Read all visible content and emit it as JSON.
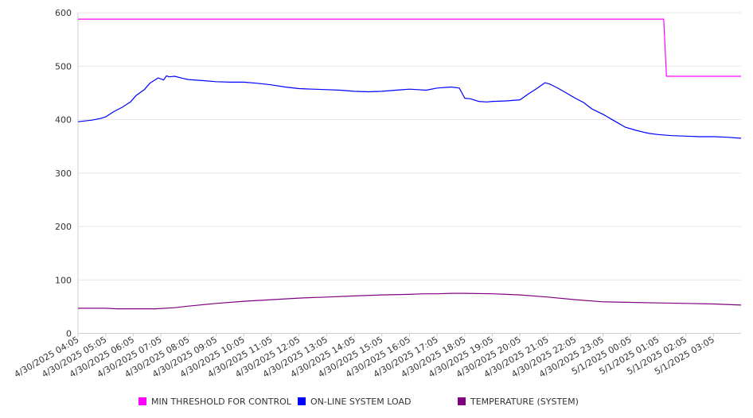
{
  "chart_data": {
    "type": "line",
    "ylim": [
      0,
      600
    ],
    "yticks": [
      0,
      100,
      200,
      300,
      400,
      500,
      600
    ],
    "xlim": [
      0,
      24
    ],
    "grid": "horizontal",
    "legend_position": "bottom",
    "categories": [
      "4/30/2025 04:05",
      "4/30/2025 05:05",
      "4/30/2025 06:05",
      "4/30/2025 07:05",
      "4/30/2025 08:05",
      "4/30/2025 09:05",
      "4/30/2025 10:05",
      "4/30/2025 11:05",
      "4/30/2025 12:05",
      "4/30/2025 13:05",
      "4/30/2025 14:05",
      "4/30/2025 15:05",
      "4/30/2025 16:05",
      "4/30/2025 17:05",
      "4/30/2025 18:05",
      "4/30/2025 19:05",
      "4/30/2025 20:05",
      "4/30/2025 21:05",
      "4/30/2025 22:05",
      "4/30/2025 23:05",
      "5/1/2025 00:05",
      "5/1/2025 01:05",
      "5/1/2025 02:05",
      "5/1/2025 03:05"
    ],
    "series": [
      {
        "name": "MIN THRESHOLD FOR CONTROL",
        "color": "#ff00ff",
        "x": [
          0,
          21.2,
          21.3,
          24
        ],
        "y": [
          588,
          588,
          481,
          481
        ]
      },
      {
        "name": "ON-LINE SYSTEM LOAD",
        "color": "#0000ff",
        "x": [
          0,
          0.5,
          0.8,
          1.0,
          1.3,
          1.6,
          1.9,
          2.1,
          2.4,
          2.6,
          2.9,
          3.1,
          3.2,
          3.3,
          3.5,
          3.8,
          4.0,
          4.5,
          5.0,
          5.5,
          6.0,
          6.5,
          7.0,
          7.5,
          8.0,
          8.5,
          9.0,
          9.5,
          10.0,
          10.5,
          11.0,
          11.5,
          12.0,
          12.3,
          12.6,
          13.0,
          13.5,
          13.8,
          14.0,
          14.2,
          14.5,
          14.8,
          15.0,
          15.5,
          16.0,
          16.3,
          16.6,
          16.9,
          17.1,
          17.4,
          17.7,
          18.0,
          18.3,
          18.6,
          19.0,
          19.4,
          19.8,
          20.2,
          20.5,
          20.7,
          21.0,
          21.5,
          22.0,
          22.5,
          23.0,
          23.5,
          24.0
        ],
        "y": [
          396,
          399,
          402,
          405,
          415,
          423,
          433,
          445,
          456,
          468,
          478,
          474,
          482,
          480,
          481,
          477,
          475,
          473,
          471,
          470,
          470,
          468,
          465,
          461,
          458,
          457,
          456,
          455,
          453,
          452,
          453,
          455,
          457,
          456,
          455,
          459,
          461,
          459,
          440,
          439,
          434,
          433,
          434,
          435,
          437,
          448,
          458,
          469,
          466,
          458,
          449,
          440,
          432,
          420,
          410,
          398,
          386,
          380,
          376,
          374,
          372,
          370,
          369,
          368,
          368,
          367,
          365
        ]
      },
      {
        "name": "TEMPERATURE (SYSTEM)",
        "color": "#800080",
        "x": [
          0,
          1,
          1.4,
          2,
          2.8,
          3.5,
          4,
          5,
          6,
          7,
          8,
          9,
          10,
          11,
          12,
          12.5,
          13,
          13.5,
          14,
          15,
          16,
          17,
          18,
          19,
          20,
          21,
          22,
          23,
          24
        ],
        "y": [
          47,
          47,
          46,
          46,
          46,
          48,
          51,
          56,
          60,
          63,
          66,
          68,
          70,
          72,
          73,
          74,
          74,
          75,
          75,
          74,
          72,
          68,
          63,
          59,
          58,
          57,
          56,
          55,
          53
        ]
      }
    ]
  }
}
